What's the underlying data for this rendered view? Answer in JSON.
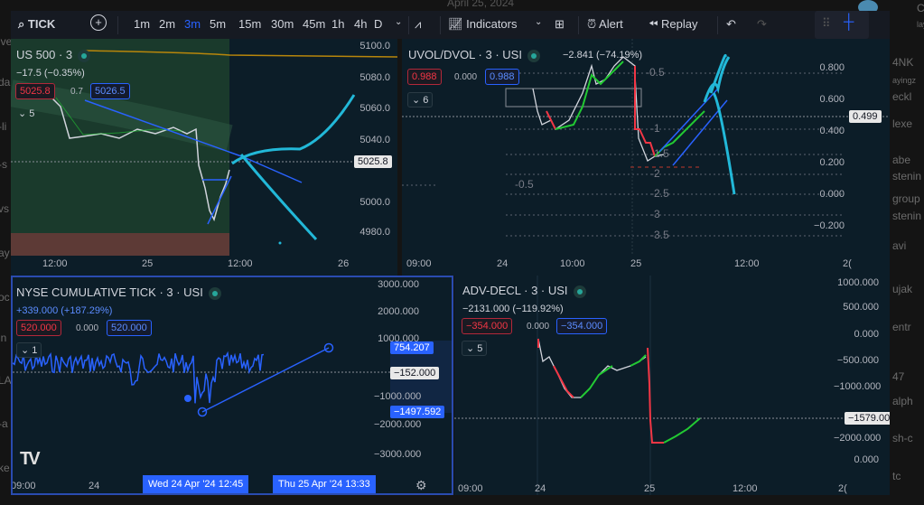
{
  "background": {
    "date": "April 25, 2024",
    "left_fragments": [
      "ive_trading",
      "da",
      "-li",
      "-s",
      "vs",
      "ay",
      "oc",
      "in",
      "LA",
      "-a",
      "ke"
    ],
    "right_fragments": [
      "Ched",
      "laying",
      "4NK",
      "ayingz",
      "eckl",
      "lexe",
      "abe",
      "stenin",
      "group",
      "stenin",
      "avi",
      "ujak",
      "entr",
      "47",
      "alph",
      "sh-c",
      "tc"
    ]
  },
  "toolbar": {
    "symbol": "TICK",
    "intervals": [
      "1m",
      "2m",
      "3m",
      "5m",
      "15m",
      "30m",
      "45m",
      "1h",
      "4h",
      "D"
    ],
    "active_interval": "3m",
    "indicators": "Indicators",
    "alert": "Alert",
    "replay": "Replay"
  },
  "colors": {
    "accent": "#2962ff",
    "up": "#22c933",
    "down": "#f23645",
    "projection": "#22b8d8",
    "panel_bg": "#0c1d28"
  },
  "panels": {
    "us500": {
      "title": "US 500 · 3",
      "change": "−17.5 (−0.35%)",
      "bid": "5025.8",
      "spread": "0.7",
      "ask": "5026.5",
      "collapse": "5",
      "price_label": "5025.8",
      "yaxis": [
        "5100.0",
        "5080.0",
        "5060.0",
        "5040.0",
        "5000.0",
        "4980.0"
      ],
      "xaxis": [
        "12:00",
        "25",
        "12:00",
        "26"
      ]
    },
    "uvol": {
      "title": "UVOL/DVOL · 3 · USI",
      "change": "−2.841 (−74.19%)",
      "bid": "0.988",
      "spread": "0.000",
      "ask": "0.988",
      "collapse": "6",
      "price_label": "0.499",
      "yaxis": [
        "0.800",
        "0.600",
        "0.400",
        "0.200",
        "0.000",
        "−0.200"
      ],
      "xaxis": [
        "09:00",
        "24",
        "10:00",
        "25",
        "12:00",
        "2("
      ],
      "levels": [
        "-0.5",
        "-0.5",
        "-1",
        "-1.5",
        "-2",
        "-2.5",
        "-3",
        "-3.5"
      ]
    },
    "tick": {
      "title": "NYSE CUMULATIVE TICK · 3 · USI",
      "change": "+339.000 (+187.29%)",
      "bid": "520.000",
      "spread": "0.000",
      "ask": "520.000",
      "collapse": "1",
      "yaxis": [
        "3000.000",
        "2000.000",
        "1000.000",
        "−1000.000",
        "−2000.000",
        "−3000.000"
      ],
      "labels": {
        "upper": "754.207",
        "current": "−152.000",
        "lower": "−1497.592"
      },
      "xaxis": [
        "09:00",
        "24"
      ],
      "tooltips": [
        "Wed 24 Apr '24   12:45",
        "Thu 25 Apr '24   13:33"
      ]
    },
    "advdecl": {
      "title": "ADV-DECL · 3 · USI",
      "change": "−2131.000 (−119.92%)",
      "bid": "−354.000",
      "spread": "0.000",
      "ask": "−354.000",
      "collapse": "5",
      "price_label": "−1579.000",
      "yaxis": [
        "1000.000",
        "500.000",
        "0.000",
        "−500.000",
        "−1000.000",
        "−2000.000",
        "0.000"
      ],
      "xaxis": [
        "09:00",
        "24",
        "25",
        "12:00",
        "2("
      ]
    }
  }
}
